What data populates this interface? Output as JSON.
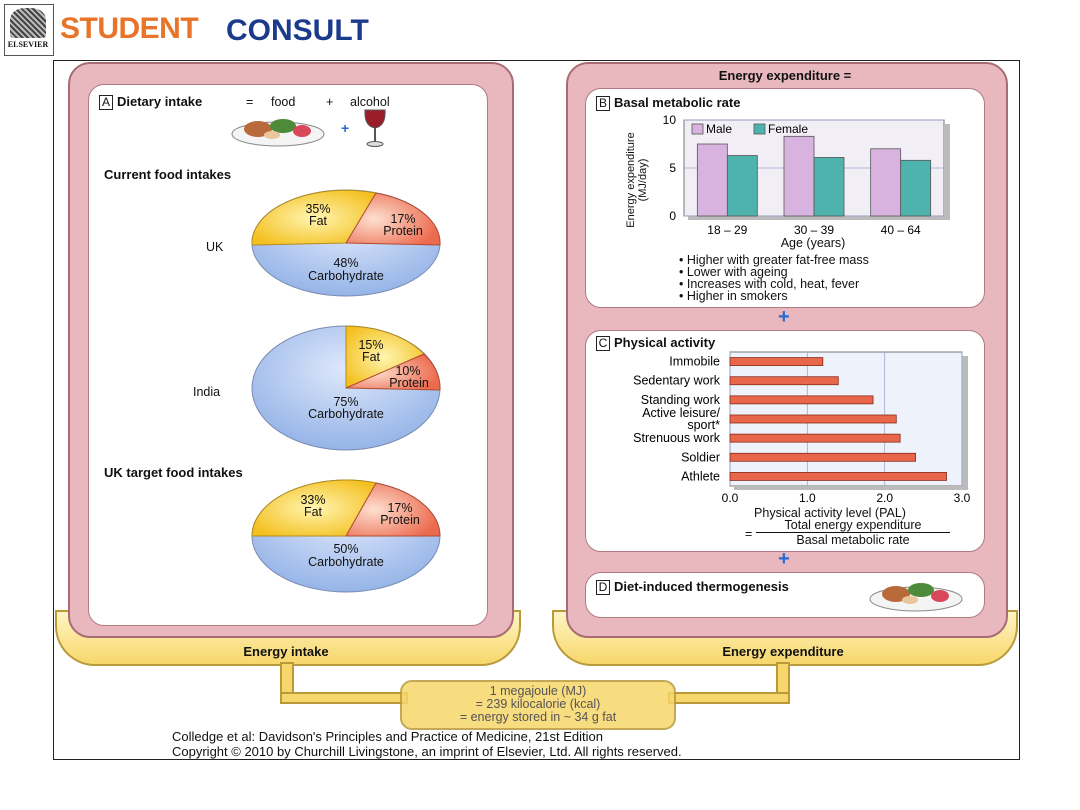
{
  "header": {
    "publisher": "ELSEVIER",
    "brand_student": "STUDENT",
    "brand_consult": "CONSULT"
  },
  "left": {
    "section_a_letter": "A",
    "dietary_intake": "Dietary intake",
    "eq": "=",
    "food": "food",
    "plus": "+",
    "alcohol": "alcohol",
    "current_title": "Current food intakes",
    "target_title": "UK target food intakes",
    "uk_label": "UK",
    "india_label": "India",
    "tray_label": "Energy intake"
  },
  "pies": {
    "uk": {
      "fat": "35%",
      "fat_name": "Fat",
      "protein": "17%",
      "protein_name": "Protein",
      "carb": "48%",
      "carb_name": "Carbohydrate"
    },
    "india": {
      "fat": "15%",
      "fat_name": "Fat",
      "protein": "10%",
      "protein_name": "Protein",
      "carb": "75%",
      "carb_name": "Carbohydrate"
    },
    "target": {
      "fat": "33%",
      "fat_name": "Fat",
      "protein": "17%",
      "protein_name": "Protein",
      "carb": "50%",
      "carb_name": "Carbohydrate"
    }
  },
  "right": {
    "title": "Energy expenditure =",
    "b_letter": "B",
    "b_title": "Basal metabolic rate",
    "c_letter": "C",
    "c_title": "Physical activity",
    "d_letter": "D",
    "d_title": "Diet-induced thermogenesis",
    "plus": "+",
    "bmr_bullets": [
      "• Higher with greater fat-free mass",
      "• Lower with ageing",
      "• Increases with cold, heat, fever",
      "• Higher in smokers"
    ],
    "pal_eq": "=",
    "pal_num": "Total energy expenditure",
    "pal_den": "Basal metabolic rate",
    "tray_label": "Energy expenditure"
  },
  "chart_data": [
    {
      "type": "bar",
      "ylabel": "Energy expenditure (MJ/day)",
      "xlabel": "Age (years)",
      "categories": [
        "18 – 29",
        "30 – 39",
        "40 – 64"
      ],
      "ylim": [
        0,
        10
      ],
      "yticks": [
        "0",
        "5",
        "10"
      ],
      "series": [
        {
          "name": "Male",
          "values": [
            7.5,
            8.3,
            7.0
          ],
          "color": "#d9b3e0"
        },
        {
          "name": "Female",
          "values": [
            6.3,
            6.1,
            5.8
          ],
          "color": "#4fb3ad"
        }
      ],
      "legend": "top-left"
    },
    {
      "type": "bar",
      "orientation": "horizontal",
      "xlabel": "Physical activity level (PAL)",
      "categories": [
        "Immobile",
        "Sedentary work",
        "Standing work",
        "Active leisure/ sport*",
        "Strenuous work",
        "Soldier",
        "Athlete"
      ],
      "values": [
        1.2,
        1.4,
        1.85,
        2.15,
        2.2,
        2.4,
        2.8
      ],
      "xlim": [
        0,
        3
      ],
      "xticks": [
        "0.0",
        "1.0",
        "2.0",
        "3.0"
      ],
      "color": "#e8674a"
    }
  ],
  "conversion": {
    "line1": "1 megajoule (MJ)",
    "line2": "= 239 kilocalorie (kcal)",
    "line3": "= energy stored in ~ 34 g fat"
  },
  "credit": {
    "line1": "Colledge et al: Davidson's Principles and Practice of Medicine, 21st Edition",
    "line2": "Copyright © 2010 by Churchill Livingstone, an imprint of Elsevier, Ltd. All rights reserved."
  }
}
